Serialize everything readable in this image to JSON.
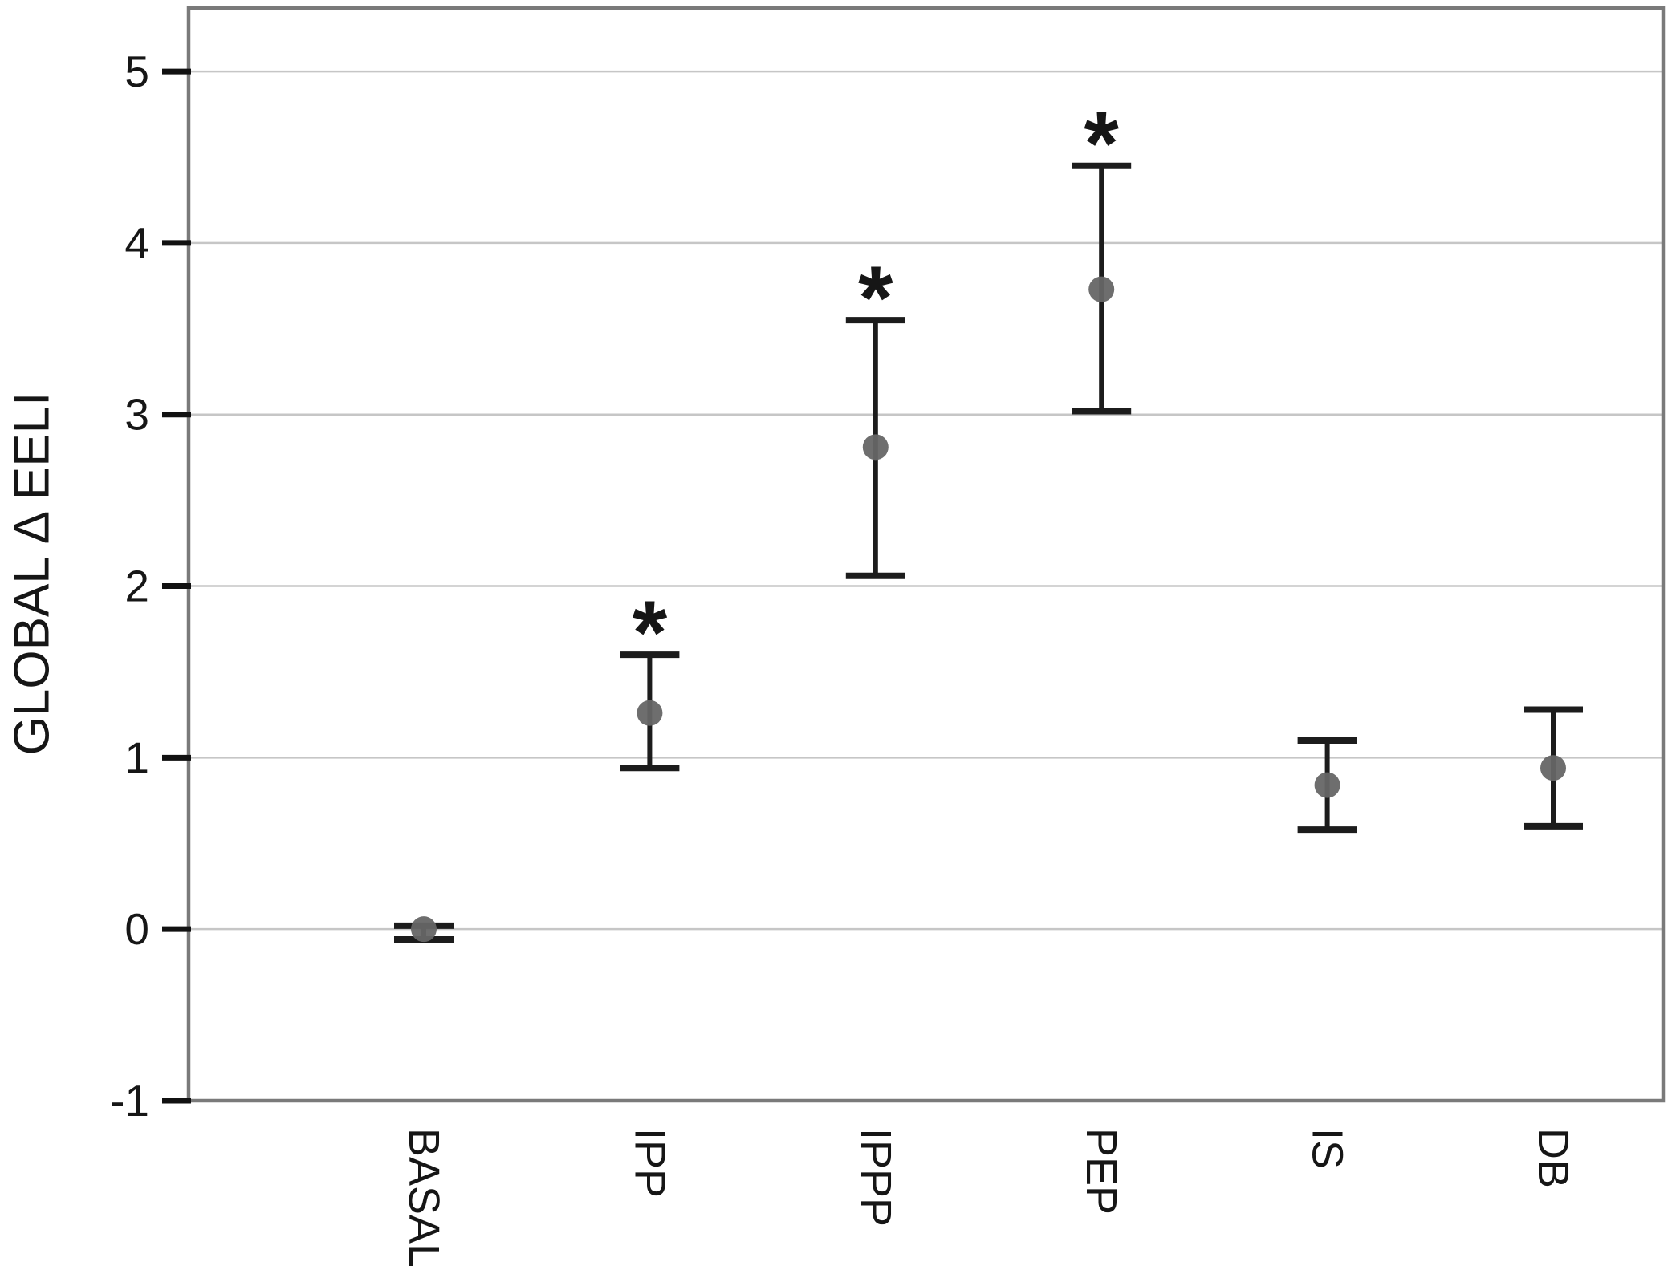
{
  "chart_data": {
    "type": "scatter",
    "subtype": "mean-with-error-bars",
    "title": "",
    "xlabel": "",
    "ylabel": "GLOBAL Δ EELI",
    "ylim": [
      -1,
      5.37
    ],
    "yticks": [
      5,
      4,
      3,
      2,
      1,
      0,
      -1
    ],
    "grid": true,
    "legend": false,
    "categories": [
      "BASAL",
      "IPP",
      "IPPP",
      "PEP",
      "IS",
      "DB"
    ],
    "significance_marker": "*",
    "series": [
      {
        "points": [
          {
            "category": "BASAL",
            "value": 0.0,
            "ci_low": -0.06,
            "ci_high": 0.02,
            "significant": false
          },
          {
            "category": "IPP",
            "value": 1.26,
            "ci_low": 0.94,
            "ci_high": 1.6,
            "significant": true
          },
          {
            "category": "IPPP",
            "value": 2.81,
            "ci_low": 2.06,
            "ci_high": 3.55,
            "significant": true
          },
          {
            "category": "PEP",
            "value": 3.73,
            "ci_low": 3.02,
            "ci_high": 4.45,
            "significant": true
          },
          {
            "category": "IS",
            "value": 0.84,
            "ci_low": 0.58,
            "ci_high": 1.1,
            "significant": false
          },
          {
            "category": "DB",
            "value": 0.94,
            "ci_low": 0.6,
            "ci_high": 1.28,
            "significant": false
          }
        ]
      }
    ],
    "colors": {
      "background": "#ffffff",
      "marker": "#666666",
      "error_bar": "#1c1c1c",
      "gridline": "#c6c6c6",
      "frame": "#7a7a7a",
      "tick": "#111111",
      "text": "#161616"
    }
  }
}
